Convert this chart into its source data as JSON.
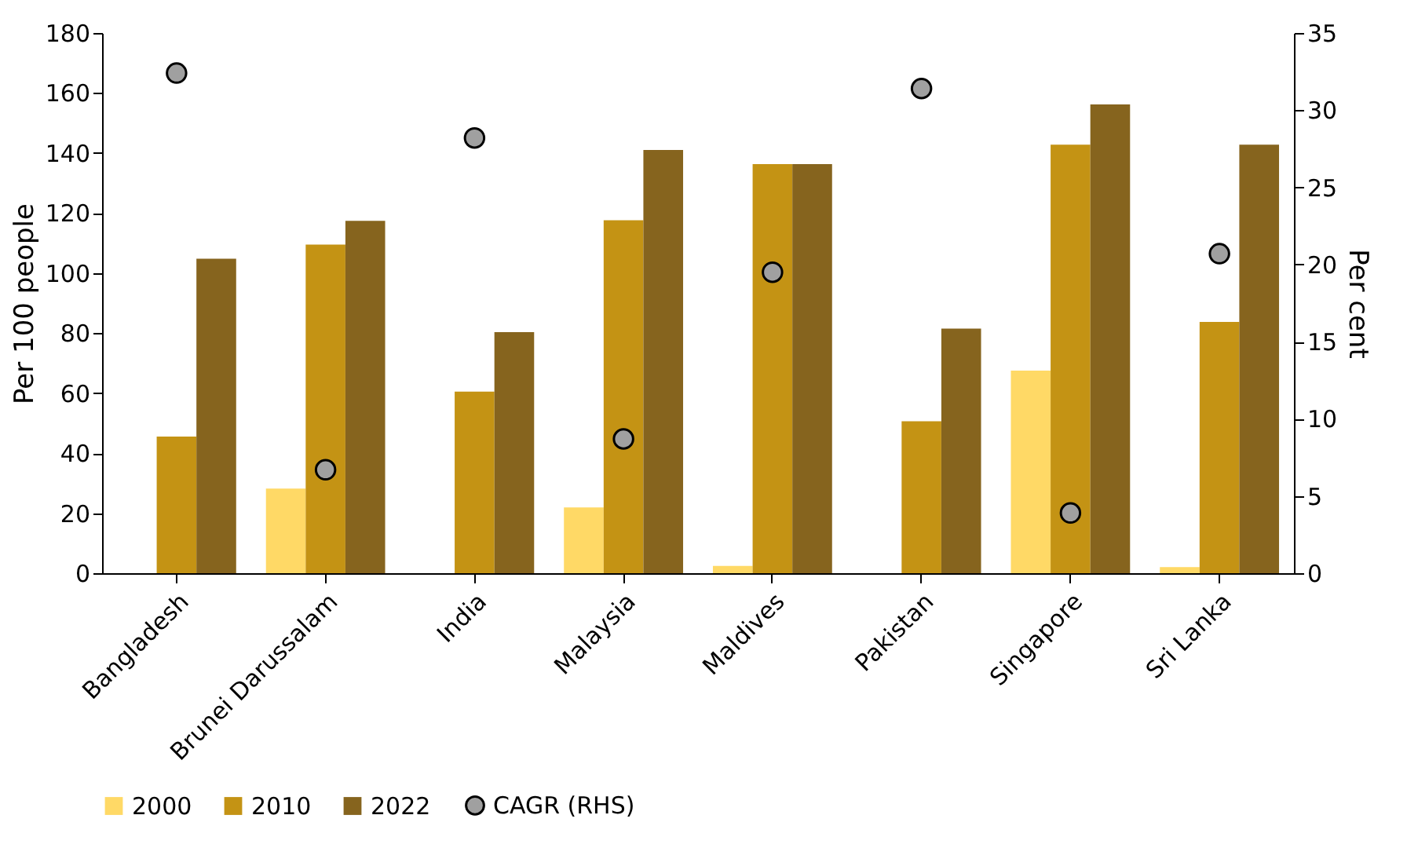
{
  "chart_data": {
    "type": "bar",
    "categories": [
      "Bangladesh",
      "Brunei Darussalam",
      "India",
      "Malaysia",
      "Maldives",
      "Pakistan",
      "Singapore",
      "Sri Lanka"
    ],
    "ylabel": "Per 100 people",
    "y2label": "Per cent",
    "ylim": [
      0,
      180
    ],
    "yticks": [
      0,
      20,
      40,
      60,
      80,
      100,
      120,
      140,
      160,
      180
    ],
    "y2lim": [
      0,
      35
    ],
    "y2ticks": [
      0,
      5,
      10,
      15,
      20,
      25,
      30,
      35
    ],
    "series": [
      {
        "name": "2000",
        "color": "#ffd966",
        "values": [
          null,
          28.2,
          null,
          21.9,
          2.4,
          null,
          67.5,
          2
        ]
      },
      {
        "name": "2010",
        "color": "#c49314",
        "values": [
          45.5,
          109.5,
          60.5,
          117.6,
          136.3,
          50.6,
          142.8,
          83.7
        ]
      },
      {
        "name": "2022",
        "color": "#86641e",
        "values": [
          104.8,
          117.4,
          80.3,
          141,
          136.3,
          81.5,
          156.2,
          142.8
        ]
      },
      {
        "name": "CAGR (RHS)",
        "type": "scatter",
        "axis": "y2",
        "color": "#a0a0a0",
        "values": [
          32.4,
          6.7,
          28.2,
          8.7,
          19.5,
          31.4,
          3.9,
          20.7
        ]
      }
    ],
    "marker": "circle",
    "legend": "bottom",
    "grid": false
  }
}
